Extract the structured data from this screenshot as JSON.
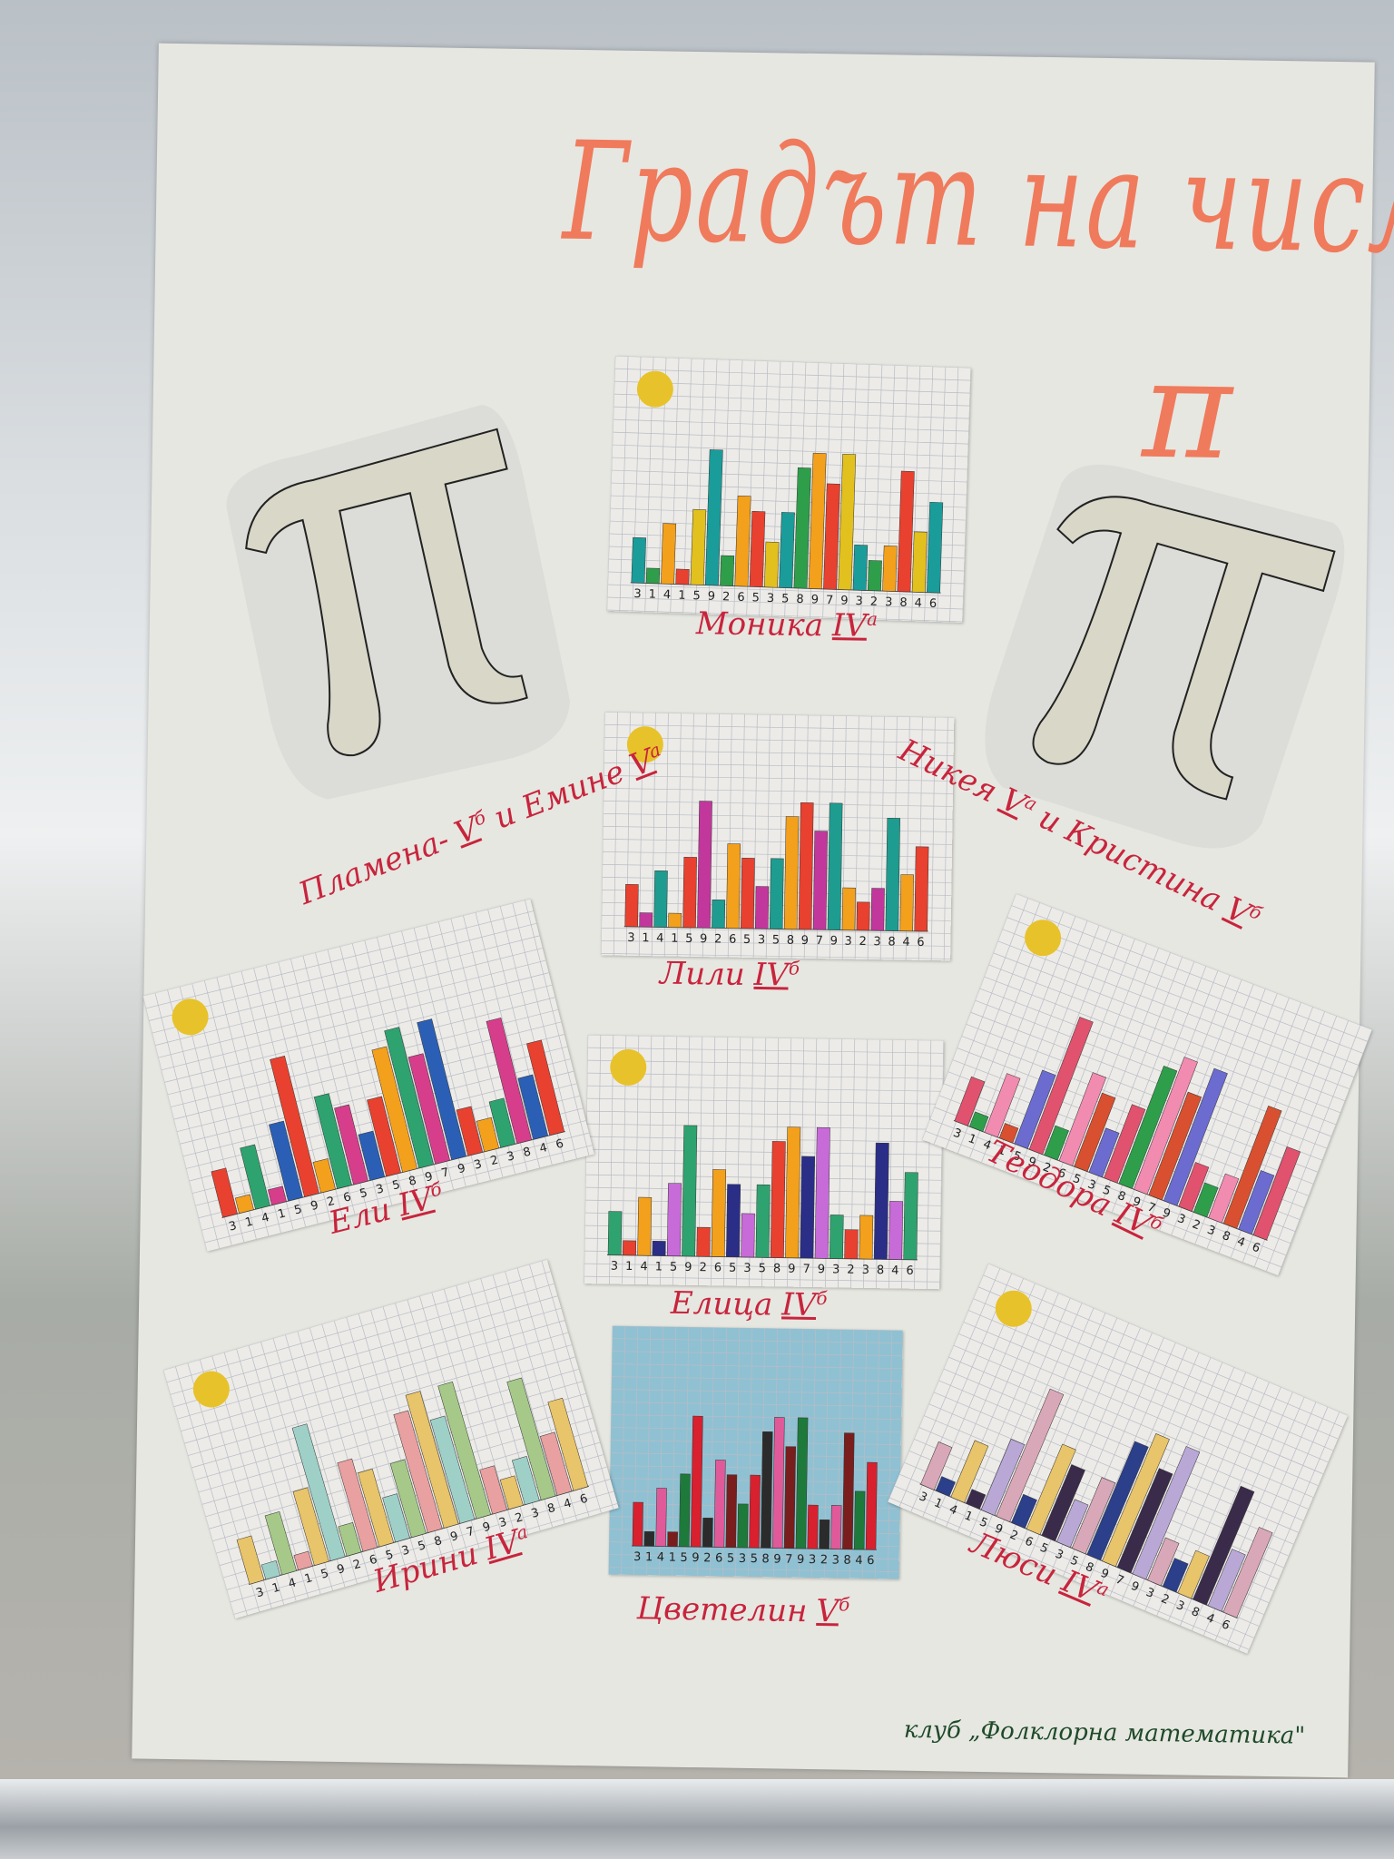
{
  "title": "Градът на числото",
  "title_symbol": "π",
  "pi_digits": [
    3,
    1,
    4,
    1,
    5,
    9,
    2,
    6,
    5,
    3,
    5,
    8,
    9,
    7,
    9,
    3,
    2,
    3,
    8,
    4,
    6
  ],
  "artworks": [
    {
      "label": [
        {
          "text": "Моника"
        },
        {
          "text": "IV",
          "sup": "а"
        }
      ],
      "colors": [
        "#1a9c9a",
        "#2e9e4a",
        "#f3a01c",
        "#e8412f",
        "#e2c01e"
      ]
    },
    {
      "label": [
        {
          "text": "Лили"
        },
        {
          "text": "IV",
          "sup": "б"
        }
      ],
      "colors": [
        "#e8412f",
        "#c2379c",
        "#1e9c8f",
        "#f3a01c"
      ]
    },
    {
      "label": [
        {
          "text": "Елица"
        },
        {
          "text": "IV",
          "sup": "б"
        }
      ],
      "colors": [
        "#2ea36f",
        "#e8412f",
        "#f3a01c",
        "#2b2e86",
        "#c76bd8"
      ]
    },
    {
      "label": [
        {
          "text": "Цветелин"
        },
        {
          "text": "V",
          "sup": "б"
        }
      ],
      "colors": [
        "#d8202e",
        "#2b2b2b",
        "#e05a9a",
        "#7a1d1d",
        "#1e7a3a"
      ]
    },
    {
      "label": [
        {
          "text": "Ели"
        },
        {
          "text": "IV",
          "sup": "б"
        }
      ],
      "colors": [
        "#e8412f",
        "#f3a01c",
        "#2ea36f",
        "#d63e8c",
        "#2b5fb5"
      ]
    },
    {
      "label": [
        {
          "text": "Теодора"
        },
        {
          "text": "IV",
          "sup": "б"
        }
      ],
      "colors": [
        "#e0526d",
        "#2e9e4a",
        "#f28bb0",
        "#d8502f",
        "#6b6bd0"
      ]
    },
    {
      "label": [
        {
          "text": "Ирини"
        },
        {
          "text": "IV",
          "sup": "а"
        }
      ],
      "colors": [
        "#e8c46a",
        "#9ed0c8",
        "#a6c98a",
        "#e8a0a0"
      ]
    },
    {
      "label": [
        {
          "text": "Люси"
        },
        {
          "text": "IV",
          "sup": "а"
        }
      ],
      "colors": [
        "#d9a8b8",
        "#2b3f8a",
        "#e8c46a",
        "#3b2b4a",
        "#b9a8d6"
      ]
    }
  ],
  "pi_shapes": [
    {
      "label": [
        {
          "text": "Пламена-"
        },
        {
          "text": "V",
          "sup": "б"
        },
        {
          "text": "и Емине"
        },
        {
          "text": "V",
          "sup": "а"
        }
      ]
    },
    {
      "label": [
        {
          "text": "Никея"
        },
        {
          "text": "V",
          "sup": "а"
        },
        {
          "text": "и Кристина"
        },
        {
          "text": "V",
          "sup": "б"
        }
      ]
    }
  ],
  "footer": "клуб „Фолклорна математика\""
}
